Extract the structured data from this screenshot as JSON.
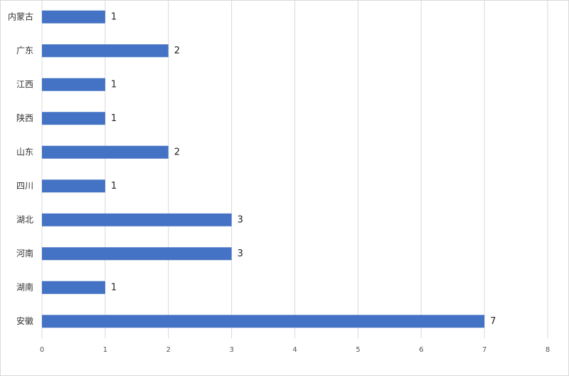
{
  "chart_data": {
    "type": "bar",
    "horizontal": true,
    "categories": [
      "内蒙古",
      "广东",
      "江西",
      "陕西",
      "山东",
      "四川",
      "湖北",
      "河南",
      "湖南",
      "安徽"
    ],
    "values": [
      1,
      2,
      1,
      1,
      2,
      1,
      3,
      3,
      1,
      7
    ],
    "color": "#4472c4",
    "xlim": [
      0,
      8
    ],
    "xticks": [
      0,
      1,
      2,
      3,
      4,
      5,
      6,
      7,
      8
    ],
    "grid": true
  }
}
